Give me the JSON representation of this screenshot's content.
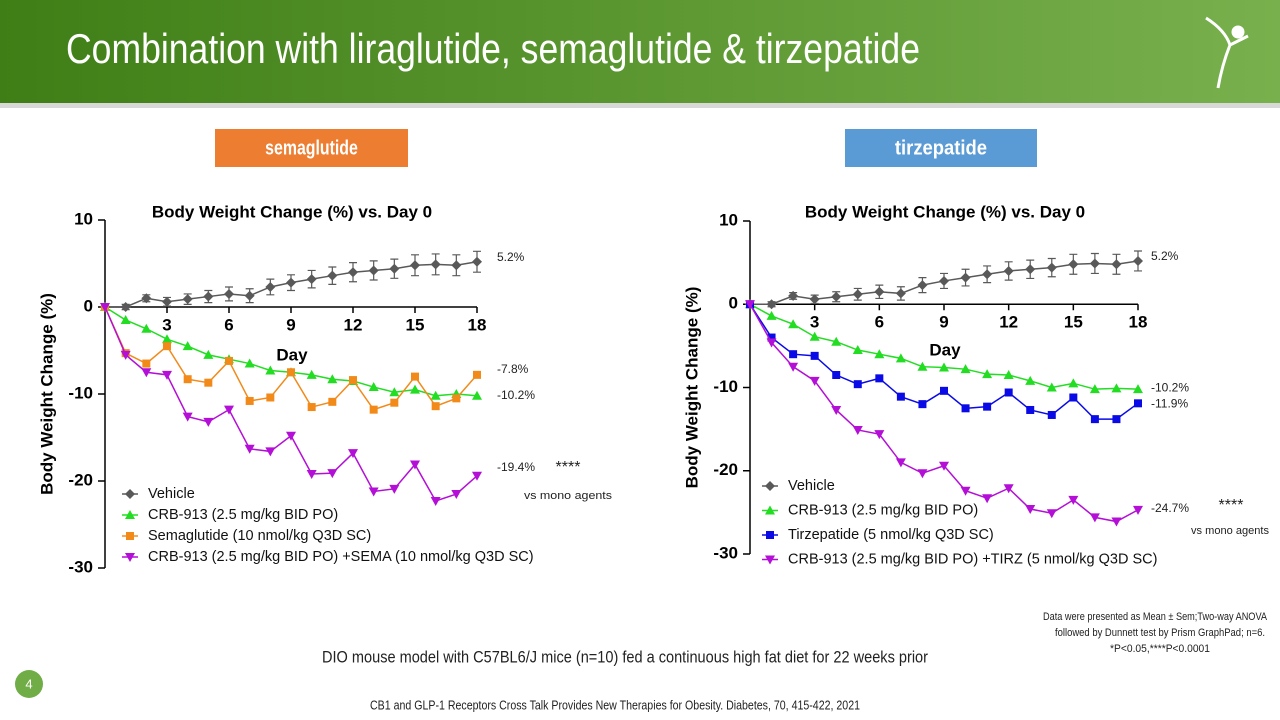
{
  "slide": {
    "title": "Combination with liraglutide, semaglutide & tirzepatide",
    "page": "4",
    "model_note": "DIO mouse model with C57BL6/J mice (n=10) fed a continuous high fat diet for 22 weeks prior",
    "citation": "CB1 and GLP-1 Receptors Cross Talk Provides New Therapies for Obesity. Diabetes, 70, 415-422, 2021",
    "footnote": [
      "Data were presented as Mean ± Sem;Two-way ANOVA",
      "followed by Dunnett test by Prism GraphPad; n=6.",
      "*P<0.05,****P<0.0001"
    ]
  },
  "chart_data": [
    {
      "type": "line",
      "header": {
        "text": "semaglutide",
        "color": "#ed7d31"
      },
      "title": "Body Weight Change (%) vs. Day 0",
      "x_label": "Day",
      "y_label": "Body Weight Change (%)",
      "x": [
        0,
        1,
        2,
        3,
        4,
        5,
        6,
        7,
        8,
        9,
        10,
        11,
        12,
        13,
        14,
        15,
        16,
        17,
        18
      ],
      "xlim": [
        0,
        18
      ],
      "xticks": [
        3,
        6,
        9,
        12,
        15,
        18
      ],
      "ylim": [
        -30,
        10
      ],
      "yticks": [
        10,
        0,
        -10,
        -20,
        -30
      ],
      "series": [
        {
          "name": "Vehicle",
          "color": "#595959",
          "marker": "diamond",
          "values": [
            0,
            0,
            1.0,
            0.6,
            0.9,
            1.2,
            1.5,
            1.3,
            2.3,
            2.8,
            3.2,
            3.6,
            4.0,
            4.2,
            4.4,
            4.8,
            4.9,
            4.8,
            5.2
          ],
          "errors": [
            0.3,
            0.3,
            0.4,
            0.5,
            0.6,
            0.7,
            0.8,
            0.8,
            0.9,
            0.9,
            1.0,
            1.0,
            1.1,
            1.1,
            1.1,
            1.2,
            1.2,
            1.2,
            1.2
          ],
          "value_labels": [
            null,
            null,
            null,
            null,
            null,
            null,
            null,
            null,
            null,
            null,
            null,
            null,
            null,
            null,
            null,
            null,
            null,
            null,
            "5.2%"
          ]
        },
        {
          "name": "CRB-913 (2.5 mg/kg BID PO)",
          "color": "#22dd22",
          "marker": "up",
          "values": [
            0,
            -1.5,
            -2.5,
            -3.7,
            -4.5,
            -5.5,
            -6.0,
            -6.5,
            -7.3,
            -7.5,
            -7.8,
            -8.3,
            -8.5,
            -9.2,
            -9.8,
            -9.5,
            -10.2,
            -10.0,
            -10.2
          ],
          "value_labels": [
            null,
            null,
            null,
            null,
            null,
            null,
            null,
            null,
            null,
            null,
            null,
            null,
            null,
            null,
            null,
            null,
            null,
            null,
            "-10.2%"
          ]
        },
        {
          "name": "Semaglutide (10 nmol/kg Q3D SC)",
          "color": "#f28a1a",
          "marker": "square",
          "values": [
            0,
            -5.3,
            -6.5,
            -4.5,
            -8.3,
            -8.7,
            -6.2,
            -10.8,
            -10.4,
            -7.5,
            -11.5,
            -10.9,
            -8.4,
            -11.8,
            -11.0,
            -8.0,
            -11.4,
            -10.5,
            -7.8
          ],
          "value_labels": [
            null,
            null,
            null,
            null,
            null,
            null,
            null,
            null,
            null,
            null,
            null,
            null,
            null,
            null,
            null,
            null,
            null,
            null,
            "-7.8%"
          ]
        },
        {
          "name": "CRB-913 (2.5 mg/kg BID PO) +SEMA (10 nmol/kg Q3D SC)",
          "color": "#b40fd6",
          "marker": "down",
          "values": [
            0,
            -5.5,
            -7.5,
            -7.8,
            -12.6,
            -13.2,
            -11.8,
            -16.3,
            -16.6,
            -14.8,
            -19.2,
            -19.1,
            -16.8,
            -21.2,
            -20.9,
            -18.1,
            -22.3,
            -21.5,
            -19.4
          ],
          "value_labels": [
            null,
            null,
            null,
            null,
            null,
            null,
            null,
            null,
            null,
            null,
            null,
            null,
            null,
            null,
            null,
            null,
            null,
            null,
            "-19.4%"
          ]
        }
      ],
      "annotations": [
        "****",
        "vs mono agents"
      ]
    },
    {
      "type": "line",
      "header": {
        "text": "tirzepatide",
        "color": "#5b9bd5"
      },
      "title": "Body Weight Change (%) vs. Day 0",
      "x_label": "Day",
      "y_label": "Body Weight Change (%)",
      "x": [
        0,
        1,
        2,
        3,
        4,
        5,
        6,
        7,
        8,
        9,
        10,
        11,
        12,
        13,
        14,
        15,
        16,
        17,
        18
      ],
      "xlim": [
        0,
        18
      ],
      "xticks": [
        3,
        6,
        9,
        12,
        15,
        18
      ],
      "ylim": [
        -30,
        10
      ],
      "yticks": [
        10,
        0,
        -10,
        -20,
        -30
      ],
      "series": [
        {
          "name": "Vehicle",
          "color": "#595959",
          "marker": "diamond",
          "values": [
            0,
            0,
            1.0,
            0.6,
            0.9,
            1.2,
            1.5,
            1.3,
            2.3,
            2.8,
            3.2,
            3.6,
            4.0,
            4.2,
            4.4,
            4.8,
            4.9,
            4.8,
            5.2
          ],
          "errors": [
            0.3,
            0.3,
            0.4,
            0.5,
            0.6,
            0.7,
            0.8,
            0.8,
            0.9,
            0.9,
            1.0,
            1.0,
            1.1,
            1.1,
            1.1,
            1.2,
            1.2,
            1.2,
            1.2
          ],
          "value_labels": [
            null,
            null,
            null,
            null,
            null,
            null,
            null,
            null,
            null,
            null,
            null,
            null,
            null,
            null,
            null,
            null,
            null,
            null,
            "5.2%"
          ]
        },
        {
          "name": "CRB-913 (2.5 mg/kg BID PO)",
          "color": "#22dd22",
          "marker": "up",
          "values": [
            0,
            -1.4,
            -2.4,
            -3.9,
            -4.5,
            -5.5,
            -6.0,
            -6.5,
            -7.5,
            -7.6,
            -7.8,
            -8.4,
            -8.5,
            -9.2,
            -10.0,
            -9.5,
            -10.2,
            -10.1,
            -10.2
          ],
          "value_labels": [
            null,
            null,
            null,
            null,
            null,
            null,
            null,
            null,
            null,
            null,
            null,
            null,
            null,
            null,
            null,
            null,
            null,
            null,
            "-10.2%"
          ]
        },
        {
          "name": "Tirzepatide (5 nmol/kg Q3D SC)",
          "color": "#0a0ae6",
          "marker": "square",
          "values": [
            0,
            -4.0,
            -6.0,
            -6.2,
            -8.5,
            -9.6,
            -8.9,
            -11.1,
            -12.0,
            -10.4,
            -12.5,
            -12.3,
            -10.6,
            -12.7,
            -13.3,
            -11.2,
            -13.8,
            -13.8,
            -11.9
          ],
          "value_labels": [
            null,
            null,
            null,
            null,
            null,
            null,
            null,
            null,
            null,
            null,
            null,
            null,
            null,
            null,
            null,
            null,
            null,
            null,
            "-11.9%"
          ]
        },
        {
          "name": "CRB-913 (2.5 mg/kg BID PO) +TIRZ (5 nmol/kg Q3D SC)",
          "color": "#b40fd6",
          "marker": "down",
          "values": [
            0,
            -4.6,
            -7.5,
            -9.2,
            -12.7,
            -15.1,
            -15.6,
            -19.0,
            -20.3,
            -19.4,
            -22.4,
            -23.3,
            -22.1,
            -24.6,
            -25.1,
            -23.5,
            -25.6,
            -26.1,
            -24.7
          ],
          "value_labels": [
            null,
            null,
            null,
            null,
            null,
            null,
            null,
            null,
            null,
            null,
            null,
            null,
            null,
            null,
            null,
            null,
            null,
            null,
            "-24.7%"
          ]
        }
      ],
      "annotations": [
        "****",
        "vs mono agents"
      ]
    }
  ]
}
